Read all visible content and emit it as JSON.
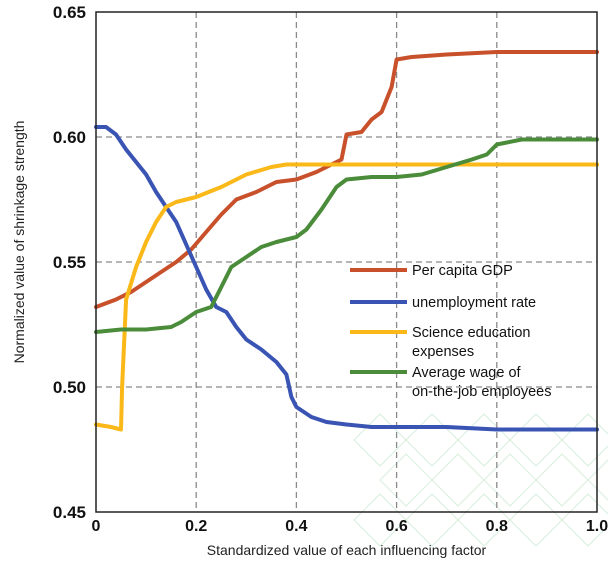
{
  "chart_data": {
    "type": "line",
    "xlabel": "Standardized value of each influencing factor",
    "ylabel": "Normalized value of shrinkage strength",
    "xlim": [
      0,
      1.0
    ],
    "ylim": [
      0.45,
      0.65
    ],
    "x_ticks": [
      "0",
      "0.2",
      "0.4",
      "0.6",
      "0.8",
      "1.0"
    ],
    "y_ticks": [
      "0.45",
      "0.50",
      "0.55",
      "0.60",
      "0.65"
    ],
    "grid": "dashed",
    "legend_position": "right-middle",
    "series": [
      {
        "name": "Per capita GDP",
        "legend_lines": [
          "Per capita GDP"
        ],
        "color": "#c8502a",
        "x": [
          0,
          0.04,
          0.07,
          0.1,
          0.13,
          0.16,
          0.19,
          0.22,
          0.25,
          0.28,
          0.32,
          0.36,
          0.4,
          0.44,
          0.47,
          0.49,
          0.5,
          0.53,
          0.55,
          0.57,
          0.58,
          0.59,
          0.6,
          0.63,
          0.7,
          0.8,
          0.9,
          1.0
        ],
        "y": [
          0.532,
          0.535,
          0.538,
          0.542,
          0.546,
          0.55,
          0.555,
          0.562,
          0.569,
          0.575,
          0.578,
          0.582,
          0.583,
          0.586,
          0.589,
          0.591,
          0.601,
          0.602,
          0.607,
          0.61,
          0.615,
          0.62,
          0.631,
          0.632,
          0.633,
          0.634,
          0.634,
          0.634
        ]
      },
      {
        "name": "unemployment rate",
        "legend_lines": [
          "unemployment rate"
        ],
        "color": "#3a54b4",
        "x": [
          0,
          0.02,
          0.04,
          0.06,
          0.08,
          0.1,
          0.12,
          0.14,
          0.16,
          0.18,
          0.2,
          0.22,
          0.24,
          0.26,
          0.28,
          0.3,
          0.33,
          0.36,
          0.38,
          0.39,
          0.4,
          0.43,
          0.46,
          0.5,
          0.55,
          0.6,
          0.7,
          0.8,
          0.9,
          1.0
        ],
        "y": [
          0.604,
          0.604,
          0.601,
          0.595,
          0.59,
          0.585,
          0.578,
          0.572,
          0.566,
          0.557,
          0.548,
          0.539,
          0.532,
          0.53,
          0.524,
          0.519,
          0.515,
          0.51,
          0.505,
          0.496,
          0.492,
          0.488,
          0.486,
          0.485,
          0.484,
          0.484,
          0.484,
          0.483,
          0.483,
          0.483
        ]
      },
      {
        "name": "Science education expenses",
        "legend_lines": [
          "Science education",
          "expenses"
        ],
        "color": "#fbb819",
        "x": [
          0,
          0.03,
          0.05,
          0.052,
          0.06,
          0.08,
          0.1,
          0.12,
          0.14,
          0.16,
          0.2,
          0.25,
          0.3,
          0.35,
          0.38,
          0.45,
          0.5,
          0.6,
          0.7,
          0.8,
          0.9,
          1.0
        ],
        "y": [
          0.485,
          0.484,
          0.483,
          0.5,
          0.535,
          0.548,
          0.558,
          0.566,
          0.572,
          0.574,
          0.576,
          0.58,
          0.585,
          0.588,
          0.589,
          0.589,
          0.589,
          0.589,
          0.589,
          0.589,
          0.589,
          0.589
        ]
      },
      {
        "name": "Average wage of on-the-job employees",
        "legend_lines": [
          "Average wage of",
          "on-the-job employees"
        ],
        "color": "#4a8c3a",
        "x": [
          0,
          0.05,
          0.1,
          0.15,
          0.17,
          0.2,
          0.23,
          0.25,
          0.27,
          0.3,
          0.33,
          0.36,
          0.4,
          0.42,
          0.45,
          0.48,
          0.5,
          0.55,
          0.6,
          0.65,
          0.7,
          0.75,
          0.78,
          0.8,
          0.85,
          0.9,
          1.0
        ],
        "y": [
          0.522,
          0.523,
          0.523,
          0.524,
          0.526,
          0.53,
          0.532,
          0.54,
          0.548,
          0.552,
          0.556,
          0.558,
          0.56,
          0.563,
          0.571,
          0.58,
          0.583,
          0.584,
          0.584,
          0.585,
          0.588,
          0.591,
          0.593,
          0.597,
          0.599,
          0.599,
          0.599
        ]
      }
    ]
  }
}
